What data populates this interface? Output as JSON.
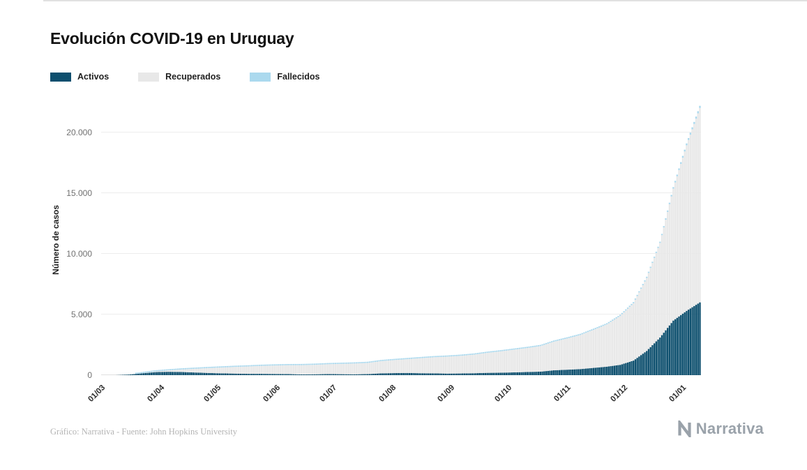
{
  "page": {
    "title": "Evolución COVID-19 en Uruguay",
    "footer_source": "Gráfico: Narrativa - Fuente: John Hopkins University",
    "brand": "Narrativa"
  },
  "legend": {
    "items": [
      {
        "label": "Activos",
        "color": "#0d4f6e"
      },
      {
        "label": "Recuperados",
        "color": "#e8e8e8"
      },
      {
        "label": "Fallecidos",
        "color": "#abd9ee"
      }
    ]
  },
  "axes": {
    "ylabel": "Número de casos",
    "y_ticks": [
      "0",
      "5.000",
      "10.000",
      "15.000",
      "20.000"
    ],
    "x_ticks": [
      "01/03",
      "01/04",
      "01/05",
      "01/06",
      "01/07",
      "01/08",
      "01/09",
      "01/10",
      "01/11",
      "01/12",
      "01/01"
    ]
  },
  "chart_data": {
    "type": "area",
    "stacked": true,
    "title": "Evolución COVID-19 en Uruguay",
    "xlabel": "",
    "ylabel": "Número de casos",
    "ylim": [
      0,
      22300
    ],
    "y_gridlines": [
      0,
      5000,
      10000,
      15000,
      20000
    ],
    "grid": "horizontal",
    "legend_position": "top-left",
    "x": [
      "01/03",
      "08/03",
      "15/03",
      "22/03",
      "29/03",
      "05/04",
      "12/04",
      "19/04",
      "26/04",
      "03/05",
      "10/05",
      "17/05",
      "24/05",
      "31/05",
      "07/06",
      "14/06",
      "21/06",
      "28/06",
      "05/07",
      "12/07",
      "19/07",
      "26/07",
      "02/08",
      "09/08",
      "16/08",
      "23/08",
      "30/08",
      "06/09",
      "13/09",
      "20/09",
      "27/09",
      "04/10",
      "11/10",
      "18/10",
      "25/10",
      "01/11",
      "08/11",
      "15/11",
      "22/11",
      "29/11",
      "06/12",
      "13/12",
      "20/12",
      "27/12",
      "03/01",
      "10/01"
    ],
    "series": [
      {
        "name": "Activos",
        "color": "#0d4f6e",
        "values": [
          0,
          0,
          48,
          150,
          250,
          280,
          260,
          220,
          180,
          150,
          130,
          110,
          110,
          100,
          90,
          60,
          70,
          90,
          80,
          70,
          90,
          150,
          170,
          180,
          160,
          150,
          130,
          140,
          160,
          190,
          200,
          230,
          260,
          290,
          400,
          450,
          500,
          600,
          700,
          850,
          1200,
          2000,
          3100,
          4500,
          5300,
          6000
        ]
      },
      {
        "name": "Recuperados",
        "color": "#e8e8e8",
        "values": [
          0,
          0,
          2,
          9,
          54,
          113,
          210,
          308,
          405,
          483,
          552,
          610,
          658,
          697,
          732,
          766,
          785,
          813,
          852,
          891,
          919,
          1007,
          1075,
          1144,
          1243,
          1330,
          1398,
          1457,
          1535,
          1654,
          1763,
          1872,
          1980,
          2109,
          2357,
          2573,
          2810,
          3138,
          3485,
          4030,
          4725,
          6015,
          7800,
          10875,
          13645,
          16020
        ]
      },
      {
        "name": "Fallecidos",
        "color": "#abd9ee",
        "values": [
          0,
          0,
          0,
          1,
          6,
          7,
          10,
          12,
          15,
          17,
          18,
          20,
          22,
          23,
          23,
          24,
          25,
          27,
          28,
          29,
          31,
          33,
          35,
          36,
          37,
          40,
          42,
          43,
          45,
          46,
          47,
          48,
          50,
          51,
          53,
          57,
          60,
          62,
          65,
          70,
          75,
          85,
          100,
          125,
          155,
          180
        ]
      }
    ]
  }
}
